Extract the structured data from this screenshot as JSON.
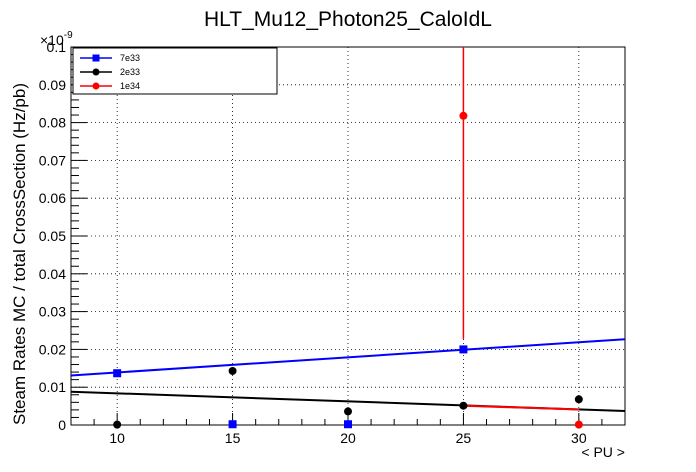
{
  "chart_data": {
    "type": "scatter",
    "title": "HLT_Mu12_Photon25_CaloIdL",
    "xlabel": "< PU >",
    "ylabel": "Steam Rates MC / total CrossSection (Hz/pb)",
    "y_exponent_label": "×10",
    "y_exponent_power": "-9",
    "xlim": [
      8,
      32
    ],
    "ylim": [
      0,
      0.1
    ],
    "x_ticks": [
      10,
      15,
      20,
      25,
      30
    ],
    "x_tick_labels": [
      "10",
      "15",
      "20",
      "25",
      "30"
    ],
    "y_ticks": [
      0,
      0.01,
      0.02,
      0.03,
      0.04,
      0.05,
      0.06,
      0.07,
      0.08,
      0.09,
      0.1
    ],
    "y_tick_labels": [
      "0",
      "0.01",
      "0.02",
      "0.03",
      "0.04",
      "0.05",
      "0.06",
      "0.07",
      "0.08",
      "0.09",
      "0.1"
    ],
    "grid": true,
    "legend_position": "top-left",
    "series": [
      {
        "name": "7e33",
        "color": "#0000ff",
        "marker": "square",
        "x": [
          10,
          15,
          20,
          25
        ],
        "y": [
          0.0137,
          0.0002,
          0.0002,
          0.02
        ],
        "fit": [
          [
            8,
            0.0131
          ],
          [
            32,
            0.0227
          ]
        ]
      },
      {
        "name": "2e33",
        "color": "#000000",
        "marker": "circle",
        "x": [
          10,
          15,
          20,
          25,
          30
        ],
        "y": [
          0.0001,
          0.0143,
          0.0036,
          0.0051,
          0.0068
        ],
        "fit": [
          [
            8,
            0.0088
          ],
          [
            32,
            0.0037
          ]
        ]
      },
      {
        "name": "1e34",
        "color": "#ff0000",
        "marker": "circle",
        "x": [
          25,
          30
        ],
        "y": [
          0.0818,
          0.0001
        ],
        "y_err": [
          [
            0.059,
            0.019
          ],
          [
            0,
            0
          ]
        ],
        "fit": [
          [
            25,
            0.0051
          ],
          [
            30,
            0.0041
          ]
        ]
      }
    ]
  }
}
